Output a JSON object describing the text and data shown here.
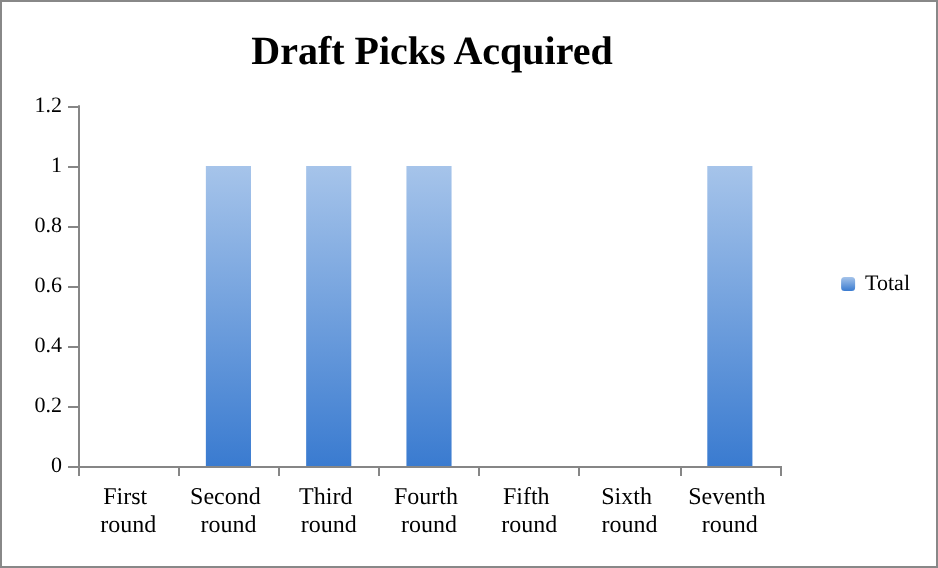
{
  "chart_data": {
    "type": "bar",
    "title": "Draft Picks Acquired",
    "categories": [
      "First round",
      "Second round",
      "Third round",
      "Fourth round",
      "Fifth round",
      "Sixth round",
      "Seventh round"
    ],
    "series": [
      {
        "name": "Total",
        "color": "#3a7bd0",
        "values": [
          0,
          1,
          1,
          1,
          0,
          0,
          1
        ]
      }
    ],
    "ylim": [
      0,
      1.2
    ],
    "yticks": [
      0,
      0.2,
      0.4,
      0.6,
      0.8,
      1,
      1.2
    ],
    "grid": false,
    "legend": "right"
  }
}
